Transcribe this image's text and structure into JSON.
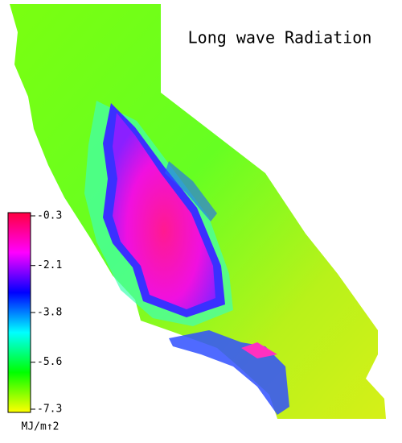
{
  "title": "Long wave Radiation",
  "colorbar": {
    "label": "MJ/m↑2",
    "lim": [
      -7.3,
      -0.3
    ],
    "ticks": [
      -0.3,
      -2.1,
      -3.8,
      -5.6,
      -7.3
    ],
    "colors": [
      "#ffff00",
      "#00ff00",
      "#00ffff",
      "#0000ff",
      "#ff00ff",
      "#ff0040"
    ]
  }
}
